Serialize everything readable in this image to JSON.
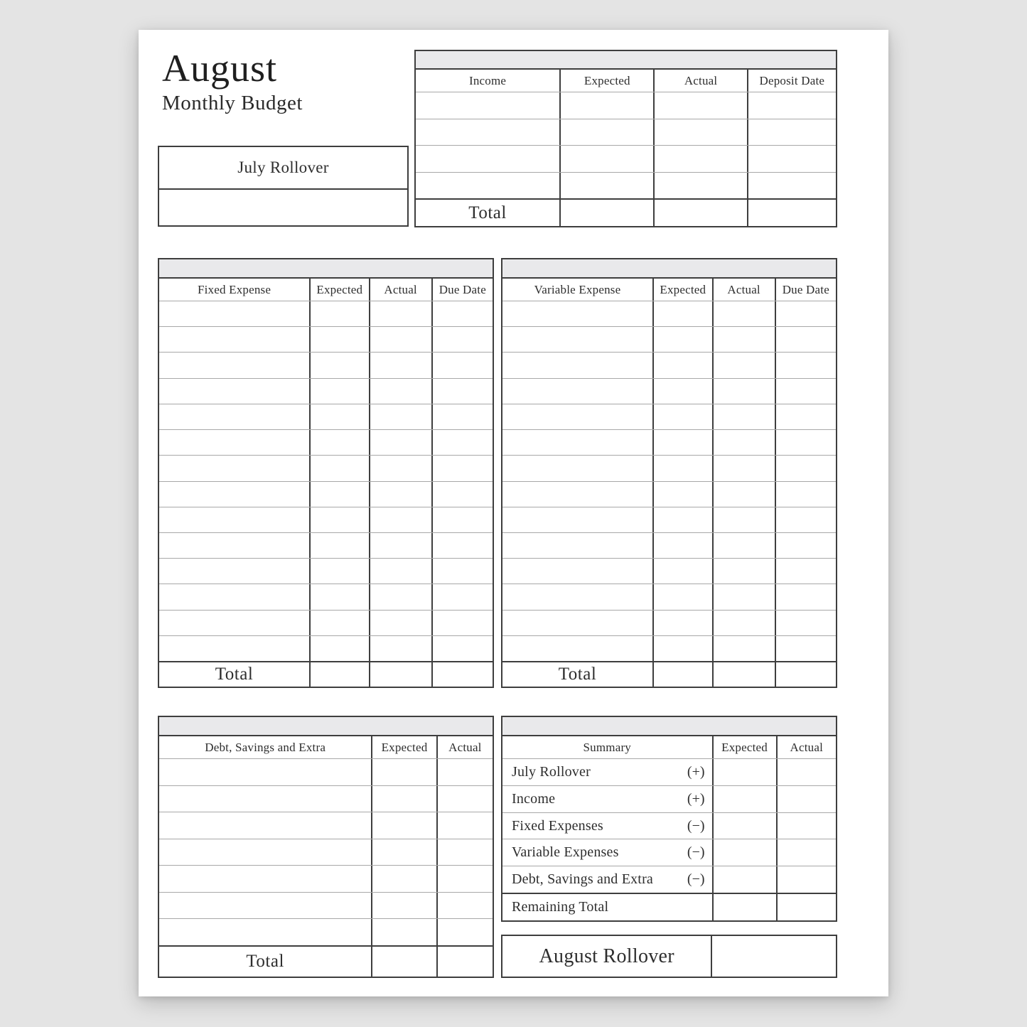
{
  "header": {
    "month": "August",
    "subtitle": "Monthly Budget"
  },
  "july_rollover_box": {
    "label": "July Rollover"
  },
  "august_rollover_box": {
    "label": "August Rollover"
  },
  "income_table": {
    "headers": [
      "Income",
      "Expected",
      "Actual",
      "Deposit Date"
    ],
    "rows": 4,
    "total_label": "Total"
  },
  "fixed_table": {
    "headers": [
      "Fixed Expense",
      "Expected",
      "Actual",
      "Due Date"
    ],
    "rows": 14,
    "total_label": "Total"
  },
  "variable_table": {
    "headers": [
      "Variable Expense",
      "Expected",
      "Actual",
      "Due Date"
    ],
    "rows": 14,
    "total_label": "Total"
  },
  "debt_table": {
    "headers": [
      "Debt, Savings and Extra",
      "Expected",
      "Actual"
    ],
    "rows": 7,
    "total_label": "Total"
  },
  "summary_table": {
    "headers": [
      "Summary",
      "Expected",
      "Actual"
    ],
    "rows": [
      {
        "label": "July Rollover",
        "sign": "(+)"
      },
      {
        "label": "Income",
        "sign": "(+)"
      },
      {
        "label": "Fixed Expenses",
        "sign": "(−)"
      },
      {
        "label": "Variable Expenses",
        "sign": "(−)"
      },
      {
        "label": "Debt, Savings and Extra",
        "sign": "(−)"
      },
      {
        "label": "Remaining Total",
        "sign": ""
      }
    ]
  },
  "colors": {
    "background": "#e4e4e4",
    "page": "#ffffff",
    "border_dark": "#3e3e3e",
    "row_line": "#a8a8a8",
    "header_band": "#e9e9eb",
    "text": "#2e2e2e"
  }
}
